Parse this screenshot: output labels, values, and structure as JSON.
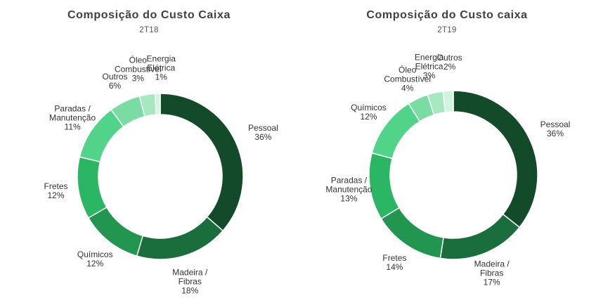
{
  "chart_data": [
    {
      "type": "pie",
      "title": "Composição do Custo Caixa",
      "subtitle": "2T18",
      "colors": [
        "#134a2a",
        "#1a6e3c",
        "#229651",
        "#2bb664",
        "#51d389",
        "#7bdca3",
        "#a7e8c1",
        "#d2f4df"
      ],
      "slices": [
        {
          "label_lines": [
            "Pessoal"
          ],
          "value": 36,
          "value_label": "36%"
        },
        {
          "label_lines": [
            "Madeira /",
            "Fibras"
          ],
          "value": 18,
          "value_label": "18%"
        },
        {
          "label_lines": [
            "Químicos"
          ],
          "value": 12,
          "value_label": "12%"
        },
        {
          "label_lines": [
            "Fretes"
          ],
          "value": 12,
          "value_label": "12%"
        },
        {
          "label_lines": [
            "Paradas /",
            "Manutenção"
          ],
          "value": 11,
          "value_label": "11%"
        },
        {
          "label_lines": [
            "Outros"
          ],
          "value": 6,
          "value_label": "6%"
        },
        {
          "label_lines": [
            "Óleo",
            "Combustível"
          ],
          "value": 3,
          "value_label": "3%"
        },
        {
          "label_lines": [
            "Energia",
            "Elétrica"
          ],
          "value": 1,
          "value_label": "1%"
        }
      ]
    },
    {
      "type": "pie",
      "title": "Composição do Custo caixa",
      "subtitle": "2T19",
      "colors": [
        "#134a2a",
        "#1a6e3c",
        "#229651",
        "#2bb664",
        "#51d389",
        "#7bdca3",
        "#a7e8c1",
        "#d2f4df"
      ],
      "slices": [
        {
          "label_lines": [
            "Pessoal"
          ],
          "value": 36,
          "value_label": "36%"
        },
        {
          "label_lines": [
            "Madeira /",
            "Fibras"
          ],
          "value": 17,
          "value_label": "17%"
        },
        {
          "label_lines": [
            "Fretes"
          ],
          "value": 14,
          "value_label": "14%"
        },
        {
          "label_lines": [
            "Paradas /",
            "Manutenção"
          ],
          "value": 13,
          "value_label": "13%"
        },
        {
          "label_lines": [
            "Químicos"
          ],
          "value": 12,
          "value_label": "12%"
        },
        {
          "label_lines": [
            "Óleo",
            "Combustível"
          ],
          "value": 4,
          "value_label": "4%"
        },
        {
          "label_lines": [
            "Energia",
            "Elétrica"
          ],
          "value": 3,
          "value_label": "3%"
        },
        {
          "label_lines": [
            "Outros"
          ],
          "value": 2,
          "value_label": "2%"
        }
      ]
    }
  ]
}
